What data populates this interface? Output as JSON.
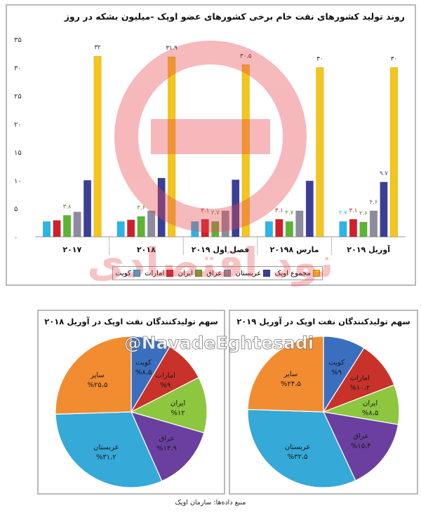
{
  "chart_data": [
    {
      "type": "bar",
      "title": "روند تولید کشورهای نفت خام برخی کشورهای عضو اوپک -میلیون بشکه در روز",
      "categories": [
        "۲۰۱۷",
        "۲۰۱۸",
        "فصل اول ۲۰۱۹",
        "مارس ۲۰۱۹۸",
        "آوریل ۲۰۱۹"
      ],
      "ylim": [
        0,
        35
      ],
      "yticks": [
        "۰",
        "۵",
        "۱۰",
        "۱۵",
        "۲۰",
        "۲۵",
        "۳۰",
        "۳۵"
      ],
      "grid": false,
      "legend_position": "bottom",
      "series": [
        {
          "name": "کویت",
          "color": "#29b6e8",
          "values": [
            2.7,
            2.7,
            2.7,
            2.7,
            2.7
          ],
          "labels": [
            "",
            "",
            "",
            "",
            "۲.۷"
          ]
        },
        {
          "name": "امارات",
          "color": "#d21f2b",
          "values": [
            2.9,
            3.0,
            3.1,
            3.1,
            3.1
          ],
          "labels": [
            "",
            "",
            "۳.۱",
            "۳.۱",
            "۳.۱"
          ]
        },
        {
          "name": "ایران",
          "color": "#5cb531",
          "values": [
            3.8,
            3.6,
            2.7,
            2.7,
            2.6
          ],
          "labels": [
            "۳.۸",
            "۳.۶",
            "۲.۷",
            "۲.۷",
            "۲.۶"
          ]
        },
        {
          "name": "عراق",
          "color": "#8c8c9e",
          "values": [
            4.4,
            4.6,
            4.6,
            4.6,
            4.6
          ],
          "labels": [
            "",
            "",
            "",
            "",
            "۴.۶"
          ]
        },
        {
          "name": "عربستان",
          "color": "#3b3f98",
          "values": [
            10.0,
            10.4,
            10.1,
            9.9,
            9.7
          ],
          "labels": [
            "",
            "",
            "",
            "",
            "۹.۷"
          ]
        },
        {
          "name": "مجموع اوپک",
          "color": "#f5c518",
          "values": [
            32.0,
            31.9,
            30.5,
            30.0,
            30.0
          ],
          "labels": [
            "۳۲",
            "۳۱.۹",
            "۳۰.۵",
            "۳۰",
            "۳۰"
          ]
        }
      ],
      "label_colors": [
        "#29b6e8",
        "#c0202a",
        "#5a8a2a",
        "#6a6a7a",
        "#3b3f98",
        "#222222"
      ]
    },
    {
      "type": "pie",
      "title": "سهم تولیدکنندگان نفت اوپک در آوریل ۲۰۱۸",
      "slices": [
        {
          "name": "کویت",
          "value": 8.5,
          "label": "%۸،۵",
          "color": "#3a6fc0"
        },
        {
          "name": "امارات",
          "value": 9,
          "label": "%۹",
          "color": "#c8322b"
        },
        {
          "name": "ایران",
          "value": 12,
          "label": "%۱۲",
          "color": "#8dc63f"
        },
        {
          "name": "عراق",
          "value": 13.9,
          "label": "%۱۳،۹",
          "color": "#6b3fa0"
        },
        {
          "name": "عربستان",
          "value": 31.2,
          "label": "%۳۱،۲",
          "color": "#35a9d8"
        },
        {
          "name": "سایر",
          "value": 25.5,
          "label": "%۲۵،۵",
          "color": "#f28c31"
        }
      ]
    },
    {
      "type": "pie",
      "title": "سهم تولیدکنندگان نفت اوپک در آوریل ۲۰۱۹",
      "slices": [
        {
          "name": "کویت",
          "value": 9,
          "label": "%۹",
          "color": "#3a6fc0"
        },
        {
          "name": "امارات",
          "value": 10.2,
          "label": "%۱۰،۲",
          "color": "#c8322b"
        },
        {
          "name": "ایران",
          "value": 8.5,
          "label": "%۸،۵",
          "color": "#8dc63f"
        },
        {
          "name": "عراق",
          "value": 15.4,
          "label": "%۱۵،۴",
          "color": "#6b3fa0"
        },
        {
          "name": "عربستان",
          "value": 32.5,
          "label": "%۳۲،۵",
          "color": "#35a9d8"
        },
        {
          "name": "سایر",
          "value": 24.5,
          "label": "%۲۴،۵",
          "color": "#f28c31"
        }
      ]
    }
  ],
  "legend": {
    "items": [
      {
        "label": "کویت",
        "color": "#29b6e8"
      },
      {
        "label": "امارات",
        "color": "#d21f2b"
      },
      {
        "label": "ایران",
        "color": "#5cb531"
      },
      {
        "label": "عراق",
        "color": "#8c8c9e"
      },
      {
        "label": "عربستان",
        "color": "#3b3f98"
      },
      {
        "label": "مجموع اوپک",
        "color": "#f5c518"
      }
    ]
  },
  "watermark": {
    "handle": "@NavadeEghtesadi",
    "brand": "نود اقتصادی",
    "color": "#e8474f"
  },
  "source": "منبع داده‌ها: سازمان اوپک"
}
